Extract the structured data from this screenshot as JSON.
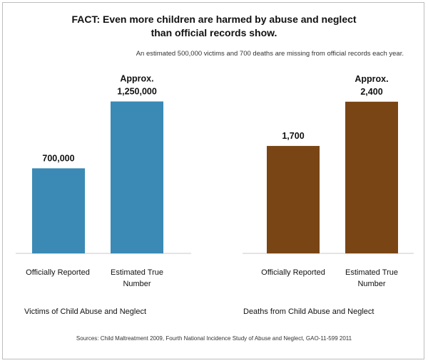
{
  "title_line1": "FACT: Even more children are harmed by abuse and neglect",
  "title_line2": "than official records show.",
  "subtitle": "An estimated 500,000 victims and 700 deaths are missing from official records each year.",
  "source": "Sources: Child Maltreatment 2009, Fourth National Incidence Study of Abuse and Neglect, GAO-11-599 2011",
  "colors": {
    "victims": "#3a8ab5",
    "deaths": "#7a4514"
  },
  "chart_data": [
    {
      "type": "bar",
      "group_label": "Victims of Child Abuse and Neglect",
      "categories": [
        [
          "Officially Reported"
        ],
        [
          "Estimated True",
          "Number"
        ]
      ],
      "values": [
        700000,
        1250000
      ],
      "data_labels": [
        [
          "700,000"
        ],
        [
          "Approx.",
          "1,250,000"
        ]
      ],
      "ylim": [
        0,
        1300000
      ],
      "color_key": "victims"
    },
    {
      "type": "bar",
      "group_label": "Deaths from Child Abuse and Neglect",
      "categories": [
        [
          "Officially Reported"
        ],
        [
          "Estimated True",
          "Number"
        ]
      ],
      "values": [
        1700,
        2400
      ],
      "data_labels": [
        [
          "1,700"
        ],
        [
          "Approx.",
          "2,400"
        ]
      ],
      "ylim": [
        0,
        2500
      ],
      "color_key": "deaths"
    }
  ]
}
